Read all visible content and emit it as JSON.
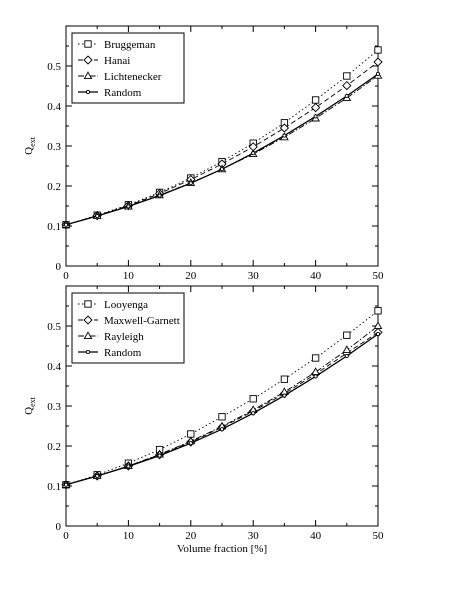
{
  "chart_data": [
    {
      "type": "line",
      "title": "",
      "xlabel": "",
      "ylabel": "Q",
      "ylabel_sub": "ext",
      "xlim": [
        0,
        50
      ],
      "ylim": [
        0,
        0.6
      ],
      "xticks": [
        "0",
        "10",
        "20",
        "30",
        "40",
        "50"
      ],
      "yticks": [
        "0",
        "0.1",
        "0.2",
        "0.3",
        "0.4",
        "0.5"
      ],
      "grid": false,
      "legend_position": "top-left",
      "x": [
        0,
        5,
        10,
        15,
        20,
        25,
        30,
        35,
        40,
        45,
        50
      ],
      "series": [
        {
          "name": "Bruggeman",
          "marker": "square",
          "dash": "dotted",
          "values": [
            0.103,
            0.127,
            0.153,
            0.184,
            0.22,
            0.261,
            0.307,
            0.358,
            0.415,
            0.475,
            0.54
          ]
        },
        {
          "name": "Hanai",
          "marker": "diamond",
          "dash": "dashed",
          "values": [
            0.103,
            0.126,
            0.151,
            0.181,
            0.216,
            0.255,
            0.298,
            0.345,
            0.396,
            0.451,
            0.51
          ]
        },
        {
          "name": "Lichtenecker",
          "marker": "triangle",
          "dash": "dashdot",
          "values": [
            0.103,
            0.125,
            0.149,
            0.177,
            0.208,
            0.242,
            0.28,
            0.322,
            0.369,
            0.42,
            0.476
          ]
        },
        {
          "name": "Random",
          "marker": "circle",
          "dash": "solid",
          "values": [
            0.103,
            0.125,
            0.149,
            0.176,
            0.207,
            0.242,
            0.282,
            0.326,
            0.374,
            0.425,
            0.48
          ]
        }
      ]
    },
    {
      "type": "line",
      "title": "",
      "xlabel": "Volume fraction [%]",
      "ylabel": "Q",
      "ylabel_sub": "ext",
      "xlim": [
        0,
        50
      ],
      "ylim": [
        0,
        0.6
      ],
      "xticks": [
        "0",
        "10",
        "20",
        "30",
        "40",
        "50"
      ],
      "yticks": [
        "0",
        "0.1",
        "0.2",
        "0.3",
        "0.4",
        "0.5"
      ],
      "grid": false,
      "legend_position": "top-left",
      "x": [
        0,
        5,
        10,
        15,
        20,
        25,
        30,
        35,
        40,
        45,
        50
      ],
      "series": [
        {
          "name": "Looyenga",
          "marker": "square",
          "dash": "dotted",
          "values": [
            0.103,
            0.128,
            0.157,
            0.191,
            0.23,
            0.273,
            0.318,
            0.367,
            0.42,
            0.477,
            0.538
          ]
        },
        {
          "name": "Maxwell-Garnett",
          "marker": "diamond",
          "dash": "dashed",
          "values": [
            0.103,
            0.125,
            0.15,
            0.178,
            0.21,
            0.247,
            0.287,
            0.331,
            0.38,
            0.432,
            0.484
          ]
        },
        {
          "name": "Rayleigh",
          "marker": "triangle",
          "dash": "dashdot",
          "values": [
            0.103,
            0.125,
            0.15,
            0.179,
            0.212,
            0.249,
            0.29,
            0.335,
            0.385,
            0.44,
            0.5
          ]
        },
        {
          "name": "Random",
          "marker": "circle",
          "dash": "solid",
          "values": [
            0.103,
            0.125,
            0.149,
            0.176,
            0.207,
            0.242,
            0.282,
            0.326,
            0.374,
            0.425,
            0.48
          ]
        }
      ]
    }
  ]
}
